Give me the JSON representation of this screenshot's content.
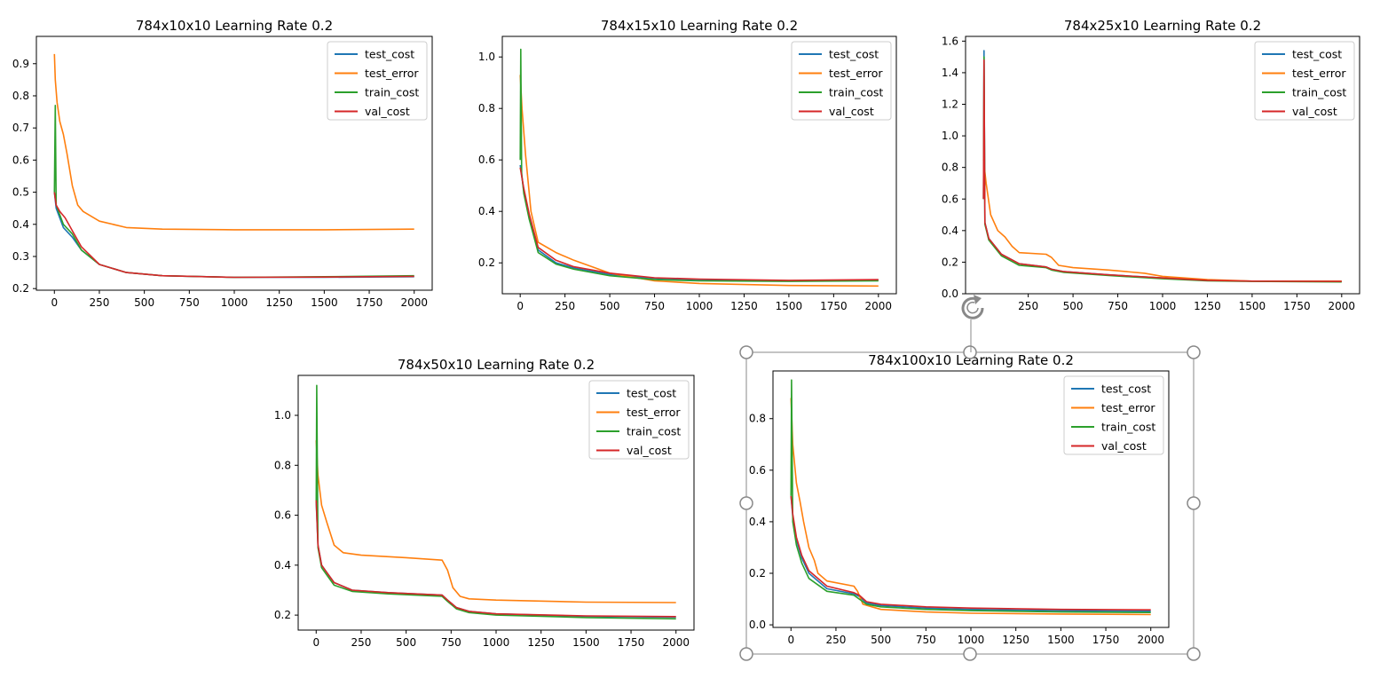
{
  "colors": {
    "test_cost": "#1f77b4",
    "test_error": "#ff7f0e",
    "train_cost": "#2ca02c",
    "val_cost": "#d62728",
    "selection_handle": "#888888"
  },
  "selection": {
    "target_chart": 4,
    "icons": [
      "rotate-handle-icon",
      "resize-handle-icon"
    ]
  },
  "chart_data": [
    {
      "type": "line",
      "title": "784x10x10 Learning Rate 0.2",
      "xlim": [
        -100,
        2100
      ],
      "ylim": [
        0.195,
        0.985
      ],
      "x_ticks": [
        0,
        250,
        500,
        750,
        1000,
        1250,
        1500,
        1750,
        2000
      ],
      "y_ticks": [
        0.2,
        0.3,
        0.4,
        0.5,
        0.6,
        0.7,
        0.8,
        0.9
      ],
      "y_tick_labels": [
        "0.2",
        "0.3",
        "0.4",
        "0.5",
        "0.6",
        "0.7",
        "0.8",
        "0.9"
      ],
      "legend_position": "top-right",
      "legend": [
        "test_cost",
        "test_error",
        "train_cost",
        "val_cost"
      ],
      "series": [
        {
          "name": "test_cost",
          "x": [
            0,
            10,
            50,
            100,
            150,
            250,
            400,
            600,
            1000,
            1500,
            2000
          ],
          "y": [
            0.5,
            0.45,
            0.39,
            0.36,
            0.32,
            0.275,
            0.25,
            0.24,
            0.235,
            0.235,
            0.237
          ]
        },
        {
          "name": "test_error",
          "x": [
            0,
            5,
            15,
            30,
            50,
            70,
            100,
            130,
            160,
            250,
            400,
            600,
            1000,
            1500,
            2000
          ],
          "y": [
            0.93,
            0.85,
            0.78,
            0.72,
            0.68,
            0.62,
            0.52,
            0.46,
            0.44,
            0.41,
            0.39,
            0.385,
            0.383,
            0.383,
            0.385
          ]
        },
        {
          "name": "train_cost",
          "x": [
            0,
            5,
            10,
            50,
            100,
            150,
            250,
            400,
            600,
            1000,
            1500,
            2000
          ],
          "y": [
            0.5,
            0.77,
            0.46,
            0.4,
            0.37,
            0.32,
            0.275,
            0.25,
            0.24,
            0.235,
            0.237,
            0.24
          ]
        },
        {
          "name": "val_cost",
          "x": [
            0,
            10,
            30,
            60,
            100,
            150,
            250,
            400,
            600,
            1000,
            1500,
            2000
          ],
          "y": [
            0.5,
            0.46,
            0.44,
            0.42,
            0.38,
            0.33,
            0.275,
            0.25,
            0.24,
            0.235,
            0.236,
            0.238
          ]
        }
      ]
    },
    {
      "type": "line",
      "title": "784x15x10 Learning Rate 0.2",
      "xlim": [
        -100,
        2100
      ],
      "ylim": [
        0.08,
        1.08
      ],
      "x_ticks": [
        0,
        250,
        500,
        750,
        1000,
        1250,
        1500,
        1750,
        2000
      ],
      "y_ticks": [
        0.2,
        0.4,
        0.6,
        0.8,
        1.0
      ],
      "y_tick_labels": [
        "0.2",
        "0.4",
        "0.6",
        "0.8",
        "1.0"
      ],
      "legend_position": "top-right",
      "legend": [
        "test_cost",
        "test_error",
        "train_cost",
        "val_cost"
      ],
      "series": [
        {
          "name": "test_cost",
          "x": [
            0,
            20,
            50,
            100,
            200,
            300,
            500,
            750,
            1000,
            1500,
            2000
          ],
          "y": [
            0.58,
            0.48,
            0.38,
            0.25,
            0.2,
            0.18,
            0.155,
            0.14,
            0.135,
            0.13,
            0.133
          ]
        },
        {
          "name": "test_error",
          "x": [
            0,
            10,
            30,
            60,
            100,
            200,
            300,
            500,
            750,
            1000,
            1500,
            2000
          ],
          "y": [
            0.93,
            0.8,
            0.62,
            0.4,
            0.28,
            0.24,
            0.21,
            0.16,
            0.13,
            0.12,
            0.112,
            0.11
          ]
        },
        {
          "name": "train_cost",
          "x": [
            0,
            3,
            8,
            20,
            50,
            100,
            200,
            300,
            500,
            750,
            1000,
            1500,
            2000
          ],
          "y": [
            0.6,
            1.03,
            0.55,
            0.47,
            0.37,
            0.24,
            0.195,
            0.175,
            0.15,
            0.135,
            0.13,
            0.128,
            0.13
          ]
        },
        {
          "name": "val_cost",
          "x": [
            0,
            20,
            50,
            100,
            200,
            300,
            500,
            750,
            1000,
            1500,
            2000
          ],
          "y": [
            0.57,
            0.49,
            0.39,
            0.26,
            0.21,
            0.185,
            0.16,
            0.142,
            0.137,
            0.132,
            0.135
          ]
        }
      ]
    },
    {
      "type": "line",
      "title": "784x25x10 Learning Rate 0.2",
      "xlim": [
        -100,
        2100
      ],
      "ylim": [
        0.0,
        1.63
      ],
      "x_ticks": [
        250,
        500,
        750,
        1000,
        1250,
        1500,
        1750,
        2000
      ],
      "y_ticks": [
        0.0,
        0.2,
        0.4,
        0.6,
        0.8,
        1.0,
        1.2,
        1.4,
        1.6
      ],
      "y_tick_labels": [
        "0.0",
        "0.2",
        "0.4",
        "0.6",
        "0.8",
        "1.0",
        "1.2",
        "1.4",
        "1.6"
      ],
      "legend_position": "top-right",
      "legend": [
        "test_cost",
        "test_error",
        "train_cost",
        "val_cost"
      ],
      "series": [
        {
          "name": "test_cost",
          "x": [
            0,
            3,
            8,
            30,
            100,
            200,
            350,
            380,
            450,
            700,
            1000,
            1250,
            1500,
            2000
          ],
          "y": [
            0.6,
            1.54,
            0.45,
            0.35,
            0.25,
            0.19,
            0.17,
            0.155,
            0.14,
            0.12,
            0.1,
            0.085,
            0.08,
            0.078
          ]
        },
        {
          "name": "test_error",
          "x": [
            0,
            5,
            15,
            40,
            80,
            120,
            160,
            200,
            350,
            380,
            420,
            500,
            700,
            900,
            1000,
            1250,
            1500,
            2000
          ],
          "y": [
            0.85,
            0.8,
            0.7,
            0.5,
            0.4,
            0.36,
            0.3,
            0.26,
            0.25,
            0.23,
            0.18,
            0.165,
            0.15,
            0.13,
            0.11,
            0.09,
            0.08,
            0.08
          ]
        },
        {
          "name": "train_cost",
          "x": [
            0,
            3,
            8,
            30,
            100,
            200,
            350,
            380,
            450,
            700,
            1000,
            1250,
            1500,
            2000
          ],
          "y": [
            0.6,
            1.5,
            0.44,
            0.34,
            0.24,
            0.18,
            0.165,
            0.15,
            0.135,
            0.115,
            0.095,
            0.082,
            0.078,
            0.075
          ]
        },
        {
          "name": "val_cost",
          "x": [
            0,
            3,
            8,
            30,
            100,
            200,
            350,
            380,
            450,
            700,
            1000,
            1250,
            1500,
            2000
          ],
          "y": [
            0.6,
            1.48,
            0.45,
            0.35,
            0.25,
            0.19,
            0.17,
            0.155,
            0.14,
            0.12,
            0.1,
            0.085,
            0.08,
            0.078
          ]
        }
      ]
    },
    {
      "type": "line",
      "title": "784x50x10 Learning Rate 0.2",
      "xlim": [
        -100,
        2100
      ],
      "ylim": [
        0.14,
        1.16
      ],
      "x_ticks": [
        0,
        250,
        500,
        750,
        1000,
        1250,
        1500,
        1750,
        2000
      ],
      "y_ticks": [
        0.2,
        0.4,
        0.6,
        0.8,
        1.0
      ],
      "y_tick_labels": [
        "0.2",
        "0.4",
        "0.6",
        "0.8",
        "1.0"
      ],
      "legend_position": "top-right",
      "legend": [
        "test_cost",
        "test_error",
        "train_cost",
        "val_cost"
      ],
      "series": [
        {
          "name": "test_cost",
          "x": [
            0,
            10,
            30,
            60,
            100,
            200,
            400,
            700,
            730,
            780,
            850,
            1000,
            1500,
            2000
          ],
          "y": [
            0.65,
            0.48,
            0.4,
            0.37,
            0.33,
            0.3,
            0.29,
            0.28,
            0.26,
            0.23,
            0.215,
            0.205,
            0.195,
            0.192
          ]
        },
        {
          "name": "test_error",
          "x": [
            0,
            10,
            30,
            60,
            100,
            150,
            250,
            500,
            700,
            730,
            760,
            800,
            850,
            1000,
            1500,
            2000
          ],
          "y": [
            0.9,
            0.76,
            0.64,
            0.57,
            0.48,
            0.45,
            0.44,
            0.43,
            0.42,
            0.38,
            0.31,
            0.275,
            0.265,
            0.26,
            0.252,
            0.25
          ]
        },
        {
          "name": "train_cost",
          "x": [
            0,
            3,
            10,
            30,
            60,
            100,
            200,
            400,
            700,
            730,
            780,
            850,
            1000,
            1500,
            2000
          ],
          "y": [
            0.65,
            1.12,
            0.47,
            0.39,
            0.36,
            0.32,
            0.295,
            0.285,
            0.275,
            0.255,
            0.225,
            0.21,
            0.2,
            0.19,
            0.185
          ]
        },
        {
          "name": "val_cost",
          "x": [
            0,
            10,
            30,
            60,
            100,
            200,
            400,
            700,
            730,
            780,
            850,
            1000,
            1500,
            2000
          ],
          "y": [
            0.66,
            0.48,
            0.4,
            0.37,
            0.33,
            0.3,
            0.29,
            0.28,
            0.26,
            0.23,
            0.215,
            0.205,
            0.197,
            0.194
          ]
        }
      ]
    },
    {
      "type": "line",
      "title": "784x100x10 Learning Rate 0.2",
      "xlim": [
        -100,
        2100
      ],
      "ylim": [
        -0.01,
        0.985
      ],
      "x_ticks": [
        0,
        250,
        500,
        750,
        1000,
        1250,
        1500,
        1750,
        2000
      ],
      "y_ticks": [
        0.0,
        0.2,
        0.4,
        0.6,
        0.8
      ],
      "y_tick_labels": [
        "0.0",
        "0.2",
        "0.4",
        "0.6",
        "0.8"
      ],
      "legend_position": "top-right",
      "legend": [
        "test_cost",
        "test_error",
        "train_cost",
        "val_cost"
      ],
      "series": [
        {
          "name": "test_cost",
          "x": [
            0,
            10,
            30,
            60,
            100,
            200,
            350,
            380,
            420,
            500,
            750,
            1000,
            1500,
            2000
          ],
          "y": [
            0.5,
            0.42,
            0.33,
            0.26,
            0.2,
            0.14,
            0.12,
            0.11,
            0.085,
            0.075,
            0.065,
            0.06,
            0.055,
            0.053
          ]
        },
        {
          "name": "test_error",
          "x": [
            0,
            10,
            30,
            50,
            70,
            100,
            130,
            150,
            200,
            350,
            370,
            400,
            450,
            500,
            750,
            1000,
            1500,
            2000
          ],
          "y": [
            0.88,
            0.7,
            0.55,
            0.48,
            0.4,
            0.3,
            0.25,
            0.2,
            0.17,
            0.15,
            0.13,
            0.08,
            0.07,
            0.06,
            0.05,
            0.045,
            0.042,
            0.04
          ]
        },
        {
          "name": "train_cost",
          "x": [
            0,
            3,
            10,
            30,
            60,
            100,
            200,
            350,
            380,
            420,
            500,
            750,
            1000,
            1500,
            2000
          ],
          "y": [
            0.5,
            0.95,
            0.4,
            0.31,
            0.24,
            0.18,
            0.13,
            0.115,
            0.1,
            0.08,
            0.07,
            0.06,
            0.055,
            0.05,
            0.048
          ]
        },
        {
          "name": "val_cost",
          "x": [
            0,
            10,
            30,
            60,
            100,
            200,
            350,
            380,
            420,
            500,
            750,
            1000,
            1500,
            2000
          ],
          "y": [
            0.5,
            0.43,
            0.34,
            0.27,
            0.21,
            0.15,
            0.125,
            0.115,
            0.09,
            0.08,
            0.07,
            0.065,
            0.06,
            0.058
          ]
        }
      ]
    }
  ]
}
